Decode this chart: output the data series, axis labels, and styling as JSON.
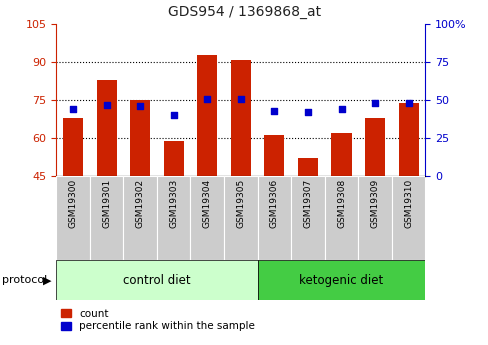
{
  "title": "GDS954 / 1369868_at",
  "samples": [
    "GSM19300",
    "GSM19301",
    "GSM19302",
    "GSM19303",
    "GSM19304",
    "GSM19305",
    "GSM19306",
    "GSM19307",
    "GSM19308",
    "GSM19309",
    "GSM19310"
  ],
  "red_bars": [
    68,
    83,
    75,
    59,
    93,
    91,
    61,
    52,
    62,
    68,
    74
  ],
  "blue_dots": [
    44,
    47,
    46,
    40,
    51,
    51,
    43,
    42,
    44,
    48,
    48
  ],
  "ylim_left": [
    45,
    105
  ],
  "ylim_right": [
    0,
    100
  ],
  "yticks_left": [
    45,
    60,
    75,
    90,
    105
  ],
  "yticks_right": [
    0,
    25,
    50,
    75,
    100
  ],
  "ytick_labels_right": [
    "0",
    "25",
    "50",
    "75",
    "100%"
  ],
  "bar_color": "#cc2200",
  "dot_color": "#0000cc",
  "control_bg_light": "#ccffcc",
  "ketogenic_bg": "#44cc44",
  "sample_bg": "#cccccc",
  "left_axis_color": "#cc2200",
  "right_axis_color": "#0000cc",
  "grid_yticks": [
    60,
    75,
    90
  ],
  "bar_width": 0.6,
  "title_fontsize": 10,
  "tick_fontsize": 8,
  "label_fontsize": 8
}
